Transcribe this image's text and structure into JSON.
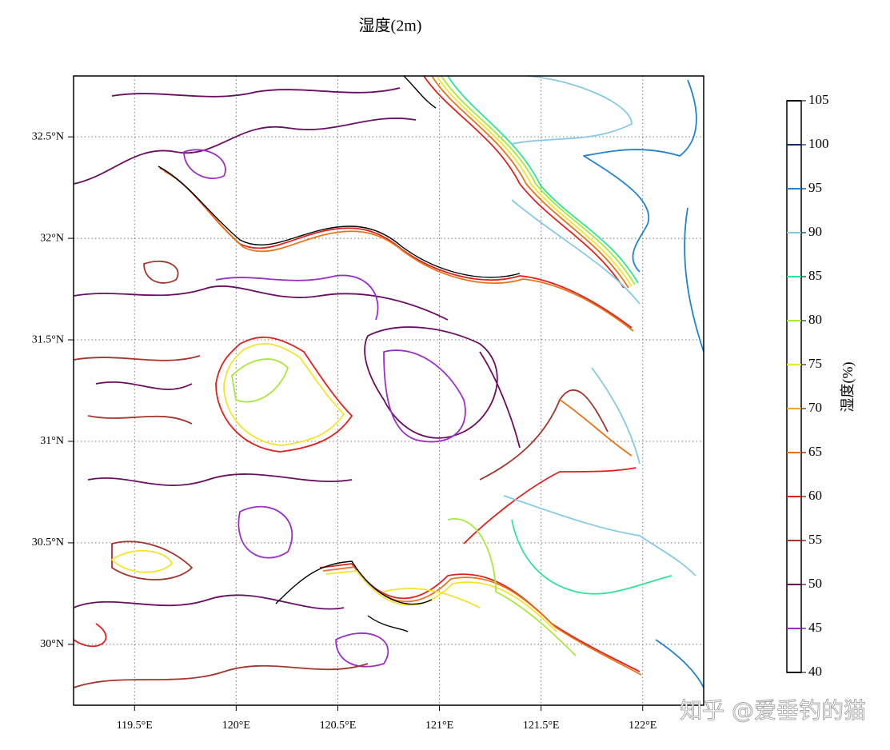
{
  "chart_data": {
    "type": "contour",
    "title": "湿度(2m)",
    "colorbar_label": "湿度(%)",
    "watermark": "知乎 @爱垂钓的猫",
    "xlim": [
      119.2,
      122.3
    ],
    "ylim": [
      29.7,
      32.8
    ],
    "xticks": [
      {
        "value": 119.5,
        "label": "119.5°E"
      },
      {
        "value": 120,
        "label": "120°E"
      },
      {
        "value": 120.5,
        "label": "120.5°E"
      },
      {
        "value": 121,
        "label": "121°E"
      },
      {
        "value": 121.5,
        "label": "121.5°E"
      },
      {
        "value": 122,
        "label": "122°E"
      }
    ],
    "yticks": [
      {
        "value": 30,
        "label": "30°N"
      },
      {
        "value": 30.5,
        "label": "30.5°N"
      },
      {
        "value": 31,
        "label": "31°N"
      },
      {
        "value": 31.5,
        "label": "31.5°N"
      },
      {
        "value": 32,
        "label": "32°N"
      },
      {
        "value": 32.5,
        "label": "32.5°N"
      }
    ],
    "grid": true,
    "levels": [
      40,
      45,
      50,
      55,
      60,
      65,
      70,
      75,
      80,
      85,
      90,
      95,
      100,
      105
    ],
    "level_colors": [
      "#000000",
      "#9a2fc8",
      "#6b0d62",
      "#a3352b",
      "#e0201c",
      "#e8741a",
      "#f2a72a",
      "#f3e42a",
      "#a8e83a",
      "#2fe39a",
      "#86c9e6",
      "#2382cf",
      "#142a6e",
      "#000000"
    ]
  }
}
